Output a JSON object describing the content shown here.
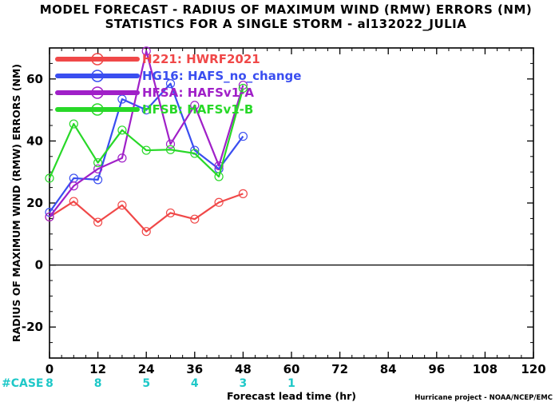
{
  "titles": {
    "line1": "MODEL FORECAST - RADIUS OF MAXIMUM WIND (RMW) ERRORS (NM)",
    "line2": "STATISTICS FOR A SINGLE STORM - al132022_JULIA"
  },
  "case_label": "#CASE",
  "credit": "Hurricane project - NOAA/NCEP/EMC",
  "chart_data": {
    "type": "line",
    "title": "MODEL FORECAST - RADIUS OF MAXIMUM WIND (RMW) ERRORS (NM)",
    "subtitle": "STATISTICS FOR A SINGLE STORM - al132022_JULIA",
    "xlabel": "Forecast lead time (hr)",
    "ylabel": "RADIUS OF MAXIMUM WIND (RMW) ERRORS (NM)",
    "xlim": [
      0,
      120
    ],
    "ylim": [
      -30,
      70
    ],
    "xticks": [
      "0",
      "12",
      "24",
      "36",
      "48",
      "60",
      "72",
      "84",
      "96",
      "108",
      "120"
    ],
    "yticks": [
      "60",
      "40",
      "20",
      "0",
      "-20"
    ],
    "zero_line": true,
    "grid": false,
    "legend_position": "top-left",
    "case_counts": [
      {
        "x": 0,
        "n": "8"
      },
      {
        "x": 12,
        "n": "8"
      },
      {
        "x": 24,
        "n": "5"
      },
      {
        "x": 36,
        "n": "4"
      },
      {
        "x": 48,
        "n": "3"
      },
      {
        "x": 60,
        "n": "1"
      }
    ],
    "x": [
      0,
      6,
      12,
      18,
      24,
      30,
      36,
      42,
      48
    ],
    "series": [
      {
        "name": "H221: HWRF2021",
        "color": "#f04848",
        "values": [
          15.5,
          20.5,
          13.8,
          19.3,
          10.8,
          16.8,
          14.8,
          20.2,
          23.0
        ]
      },
      {
        "name": "HG16: HAFS_no_change",
        "color": "#3a4ef0",
        "values": [
          17.0,
          28.0,
          27.5,
          53.5,
          50.0,
          58.5,
          37.0,
          31.0,
          41.5
        ]
      },
      {
        "name": "HFSA: HAFSv1-A",
        "color": "#a020c8",
        "values": [
          15.5,
          25.5,
          31.0,
          34.5,
          69.0,
          39.0,
          51.5,
          32.0,
          58.0
        ]
      },
      {
        "name": "HFSB: HAFSv1-B",
        "color": "#28d828",
        "values": [
          28.0,
          45.5,
          33.0,
          43.5,
          37.0,
          37.2,
          36.0,
          28.5,
          57.0
        ]
      }
    ]
  }
}
